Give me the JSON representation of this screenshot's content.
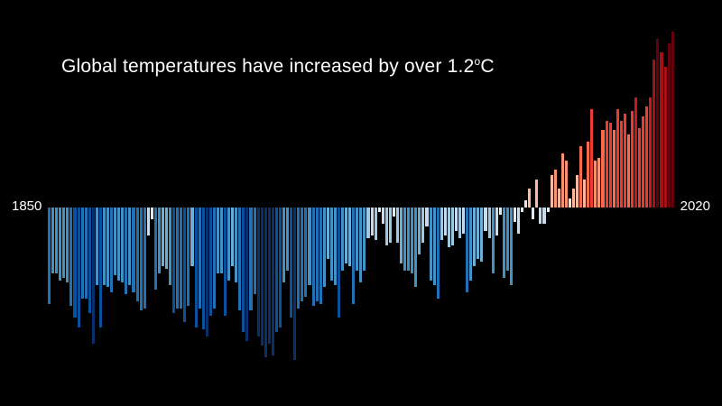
{
  "title": {
    "text": "Global temperatures have increased by over 1.2",
    "degree_symbol": "o",
    "unit": "C"
  },
  "axis": {
    "start_year_label": "1850",
    "end_year_label": "2020"
  },
  "colors": {
    "background": "#000000",
    "text": "#ffffff",
    "stops": [
      {
        "max": -0.55,
        "color": "#08306b"
      },
      {
        "max": -0.45,
        "color": "#08519c"
      },
      {
        "max": -0.35,
        "color": "#2171b5"
      },
      {
        "max": -0.27,
        "color": "#4292c6"
      },
      {
        "max": -0.2,
        "color": "#6baed6"
      },
      {
        "max": -0.13,
        "color": "#9ecae1"
      },
      {
        "max": -0.07,
        "color": "#c6dbef"
      },
      {
        "max": 0.0,
        "color": "#deebf7"
      },
      {
        "max": 0.07,
        "color": "#fee0d2"
      },
      {
        "max": 0.15,
        "color": "#fcbba1"
      },
      {
        "max": 0.23,
        "color": "#fc9272"
      },
      {
        "max": 0.33,
        "color": "#fb6a4a"
      },
      {
        "max": 0.43,
        "color": "#ef3b2c"
      },
      {
        "max": 0.55,
        "color": "#cb181d"
      },
      {
        "max": 0.66,
        "color": "#a50f15"
      },
      {
        "max": 99,
        "color": "#67000d"
      }
    ]
  },
  "chart_data": {
    "type": "bar",
    "title": "Global temperatures have increased by over 1.2°C",
    "x_start": 1850,
    "x_end": 2020,
    "value_unit": "°C",
    "ylim": [
      -0.7,
      0.8
    ],
    "values": [
      -0.41,
      -0.28,
      -0.28,
      -0.31,
      -0.3,
      -0.32,
      -0.42,
      -0.47,
      -0.51,
      -0.39,
      -0.39,
      -0.45,
      -0.58,
      -0.33,
      -0.51,
      -0.33,
      -0.34,
      -0.36,
      -0.29,
      -0.31,
      -0.32,
      -0.37,
      -0.33,
      -0.36,
      -0.4,
      -0.44,
      -0.43,
      -0.12,
      -0.05,
      -0.35,
      -0.28,
      -0.25,
      -0.26,
      -0.33,
      -0.45,
      -0.43,
      -0.43,
      -0.49,
      -0.42,
      -0.25,
      -0.51,
      -0.43,
      -0.52,
      -0.55,
      -0.46,
      -0.43,
      -0.28,
      -0.28,
      -0.46,
      -0.31,
      -0.25,
      -0.32,
      -0.44,
      -0.53,
      -0.57,
      -0.44,
      -0.37,
      -0.55,
      -0.59,
      -0.64,
      -0.58,
      -0.63,
      -0.53,
      -0.51,
      -0.32,
      -0.27,
      -0.47,
      -0.65,
      -0.43,
      -0.4,
      -0.38,
      -0.33,
      -0.42,
      -0.4,
      -0.41,
      -0.34,
      -0.22,
      -0.31,
      -0.33,
      -0.47,
      -0.27,
      -0.24,
      -0.25,
      -0.41,
      -0.27,
      -0.32,
      -0.27,
      -0.13,
      -0.12,
      -0.14,
      -0.02,
      -0.07,
      -0.16,
      -0.15,
      -0.04,
      -0.15,
      -0.24,
      -0.27,
      -0.27,
      -0.28,
      -0.34,
      -0.2,
      -0.15,
      -0.08,
      -0.31,
      -0.33,
      -0.39,
      -0.14,
      -0.12,
      -0.17,
      -0.16,
      -0.1,
      -0.13,
      -0.11,
      -0.36,
      -0.31,
      -0.25,
      -0.22,
      -0.23,
      -0.1,
      -0.13,
      -0.28,
      -0.12,
      -0.03,
      -0.3,
      -0.27,
      -0.33,
      -0.06,
      -0.11,
      -0.02,
      0.03,
      0.08,
      -0.05,
      0.12,
      -0.07,
      -0.07,
      -0.02,
      0.14,
      0.16,
      0.08,
      0.23,
      0.2,
      0.04,
      0.08,
      0.14,
      0.26,
      0.12,
      0.28,
      0.42,
      0.2,
      0.21,
      0.33,
      0.37,
      0.36,
      0.33,
      0.42,
      0.37,
      0.4,
      0.31,
      0.41,
      0.47,
      0.34,
      0.39,
      0.43,
      0.47,
      0.63,
      0.72,
      0.66,
      0.6,
      0.7,
      0.75
    ]
  }
}
